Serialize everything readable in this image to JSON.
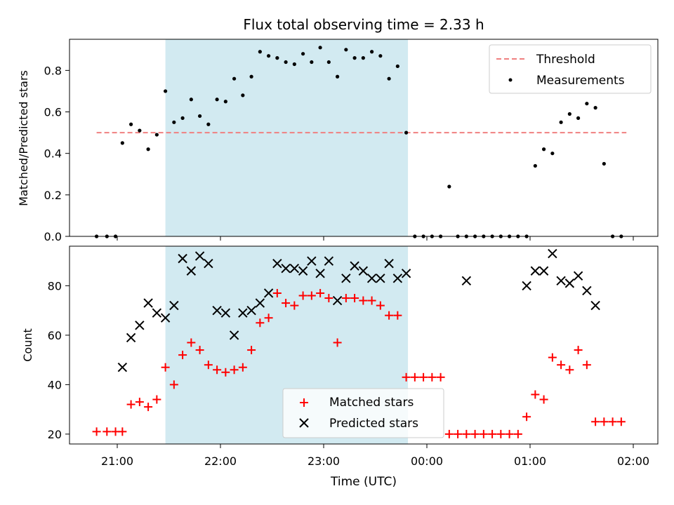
{
  "chart_data": [
    {
      "type": "scatter",
      "title": "Flux total observing time = 2.33 h",
      "xlabel": "",
      "ylabel": "Matched/Predicted stars",
      "ylim": [
        0,
        0.95
      ],
      "yticks": [
        0.0,
        0.2,
        0.4,
        0.6,
        0.8
      ],
      "ytick_labels": [
        "0.0",
        "0.2",
        "0.4",
        "0.6",
        "0.8"
      ],
      "shaded_interval": {
        "start": "21:28",
        "end": "23:49",
        "color": "#add8e6"
      },
      "threshold": {
        "name": "Threshold",
        "value": 0.5,
        "x_start": "20:48",
        "x_end": "01:56",
        "color": "#f08080",
        "style": "dashed"
      },
      "legend": {
        "position": "top-right",
        "entries": [
          "Threshold",
          "Measurements"
        ]
      },
      "series": [
        {
          "name": "Measurements",
          "color": "#000000",
          "marker": "dot",
          "x": [
            "20:48",
            "20:54",
            "20:59",
            "21:03",
            "21:08",
            "21:13",
            "21:18",
            "21:23",
            "21:28",
            "21:33",
            "21:38",
            "21:43",
            "21:48",
            "21:53",
            "21:58",
            "22:03",
            "22:08",
            "22:13",
            "22:18",
            "22:23",
            "22:28",
            "22:33",
            "22:38",
            "22:43",
            "22:48",
            "22:53",
            "22:58",
            "23:03",
            "23:08",
            "23:13",
            "23:18",
            "23:23",
            "23:28",
            "23:33",
            "23:38",
            "23:43",
            "23:48",
            "23:53",
            "23:58",
            "00:03",
            "00:08",
            "00:13",
            "00:18",
            "00:23",
            "00:28",
            "00:33",
            "00:38",
            "00:43",
            "00:48",
            "00:53",
            "00:58",
            "01:03",
            "01:08",
            "01:13",
            "01:18",
            "01:23",
            "01:28",
            "01:33",
            "01:38",
            "01:43",
            "01:48",
            "01:53"
          ],
          "y": [
            0.0,
            0.0,
            0.0,
            0.45,
            0.54,
            0.51,
            0.42,
            0.49,
            0.7,
            0.55,
            0.57,
            0.66,
            0.58,
            0.54,
            0.66,
            0.65,
            0.76,
            0.68,
            0.77,
            0.89,
            0.87,
            0.86,
            0.84,
            0.83,
            0.88,
            0.84,
            0.91,
            0.84,
            0.77,
            0.9,
            0.86,
            0.86,
            0.89,
            0.87,
            0.76,
            0.82,
            0.5,
            0.0,
            0.0,
            0.0,
            0.0,
            0.24,
            0.0,
            0.0,
            0.0,
            0.0,
            0.0,
            0.0,
            0.0,
            0.0,
            0.0,
            0.34,
            0.42,
            0.4,
            0.55,
            0.59,
            0.57,
            0.64,
            0.62,
            0.35,
            0.0,
            0.0
          ]
        }
      ]
    },
    {
      "type": "scatter",
      "title": "",
      "xlabel": "Time (UTC)",
      "ylabel": "Count",
      "ylim": [
        16,
        96
      ],
      "yticks": [
        20,
        40,
        60,
        80
      ],
      "ytick_labels": [
        "20",
        "40",
        "60",
        "80"
      ],
      "xticks": [
        "21:00",
        "22:00",
        "23:00",
        "00:00",
        "01:00",
        "02:00"
      ],
      "shaded_interval": {
        "start": "21:28",
        "end": "23:49",
        "color": "#add8e6"
      },
      "legend": {
        "position": "bottom-center",
        "entries": [
          "Matched stars",
          "Predicted stars"
        ]
      },
      "series": [
        {
          "name": "Matched stars",
          "color": "#ff0000",
          "marker": "plus",
          "x": [
            "20:48",
            "20:54",
            "20:59",
            "21:03",
            "21:08",
            "21:13",
            "21:18",
            "21:23",
            "21:28",
            "21:33",
            "21:38",
            "21:43",
            "21:48",
            "21:53",
            "21:58",
            "22:03",
            "22:08",
            "22:13",
            "22:18",
            "22:23",
            "22:28",
            "22:33",
            "22:38",
            "22:43",
            "22:48",
            "22:53",
            "22:58",
            "23:03",
            "23:08",
            "23:13",
            "23:18",
            "23:23",
            "23:28",
            "23:33",
            "23:38",
            "23:43",
            "23:48",
            "23:53",
            "23:58",
            "00:03",
            "00:08",
            "00:13",
            "00:18",
            "00:23",
            "00:28",
            "00:33",
            "00:38",
            "00:43",
            "00:48",
            "00:53",
            "00:58",
            "01:03",
            "01:08",
            "01:13",
            "01:18",
            "01:23",
            "01:28",
            "01:33",
            "01:38",
            "01:43",
            "01:48",
            "01:53"
          ],
          "y": [
            21,
            21,
            21,
            21,
            32,
            33,
            31,
            34,
            47,
            40,
            52,
            57,
            54,
            48,
            46,
            45,
            46,
            47,
            54,
            65,
            67,
            77,
            73,
            72,
            76,
            76,
            77,
            75,
            57,
            75,
            75,
            74,
            74,
            72,
            68,
            68,
            43,
            43,
            43,
            43,
            43,
            20,
            20,
            20,
            20,
            20,
            20,
            20,
            20,
            20,
            27,
            36,
            34,
            51,
            48,
            46,
            54,
            48,
            25,
            25,
            25,
            25
          ]
        },
        {
          "name": "Predicted stars",
          "color": "#000000",
          "marker": "x",
          "x": [
            "21:03",
            "21:08",
            "21:13",
            "21:18",
            "21:23",
            "21:28",
            "21:33",
            "21:38",
            "21:43",
            "21:48",
            "21:53",
            "21:58",
            "22:03",
            "22:08",
            "22:13",
            "22:18",
            "22:23",
            "22:28",
            "22:33",
            "22:38",
            "22:43",
            "22:48",
            "22:53",
            "22:58",
            "23:03",
            "23:08",
            "23:13",
            "23:18",
            "23:23",
            "23:28",
            "23:33",
            "23:38",
            "23:43",
            "23:48",
            "00:23",
            "00:58",
            "01:03",
            "01:08",
            "01:13",
            "01:18",
            "01:23",
            "01:28",
            "01:33",
            "01:38"
          ],
          "y": [
            47,
            59,
            64,
            73,
            69,
            67,
            72,
            91,
            86,
            92,
            89,
            70,
            69,
            60,
            69,
            70,
            73,
            77,
            89,
            87,
            87,
            86,
            90,
            85,
            90,
            74,
            83,
            88,
            86,
            83,
            83,
            89,
            83,
            85,
            82,
            80,
            86,
            86,
            93,
            82,
            81,
            84,
            78,
            72
          ]
        }
      ]
    }
  ]
}
